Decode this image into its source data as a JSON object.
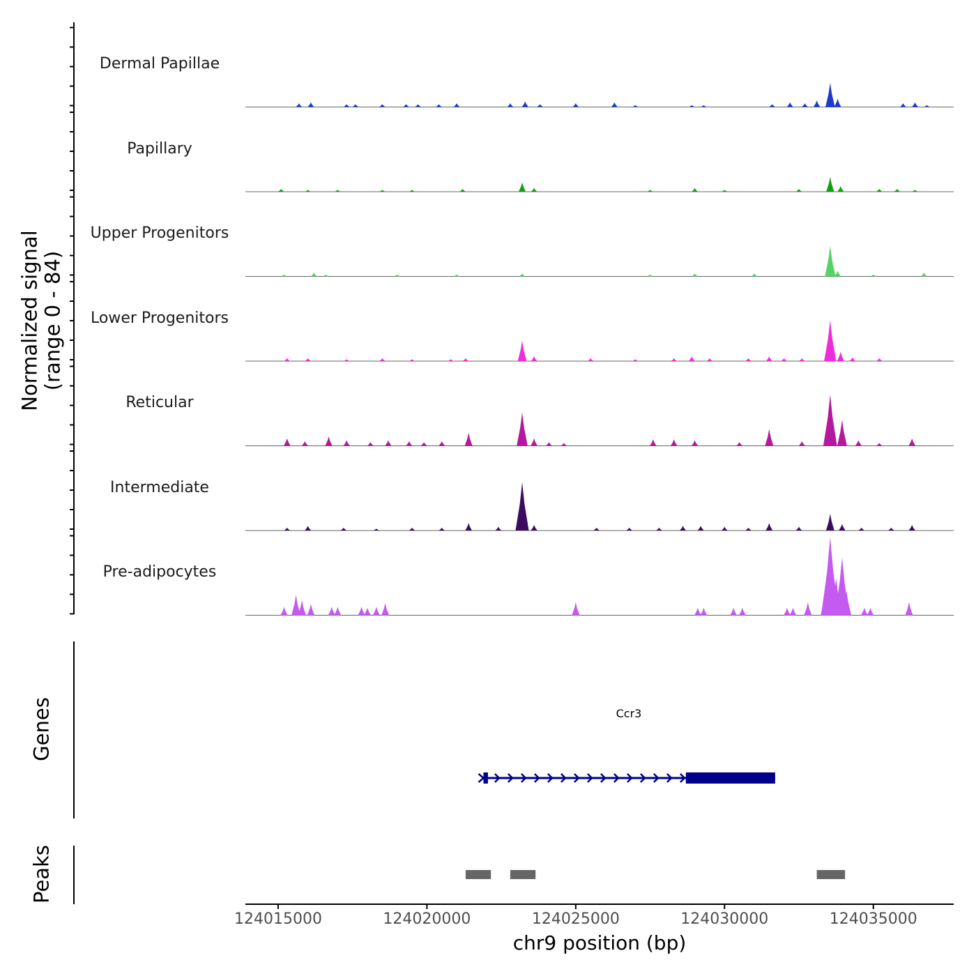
{
  "chart_data": {
    "type": "area",
    "title": "",
    "ylabel": "Normalized signal",
    "ylabel_range": "(range 0 - 84)",
    "ylim": [
      0,
      84
    ],
    "xlabel": "chr9 position (bp)",
    "xlim": [
      124013900,
      124037700
    ],
    "xticks": [
      124015000,
      124020000,
      124025000,
      124030000,
      124035000
    ],
    "xtick_labels": [
      "124015000",
      "124020000",
      "124025000",
      "124030000",
      "124035000"
    ],
    "series": [
      {
        "name": "Dermal Papillae",
        "color": "#1a3bcc",
        "peaks": [
          [
            124015700,
            4
          ],
          [
            124016100,
            5
          ],
          [
            124017300,
            3
          ],
          [
            124017600,
            3
          ],
          [
            124018500,
            3
          ],
          [
            124019300,
            3
          ],
          [
            124019700,
            3
          ],
          [
            124020400,
            3
          ],
          [
            124021000,
            4
          ],
          [
            124022800,
            4
          ],
          [
            124023300,
            6
          ],
          [
            124023800,
            3
          ],
          [
            124025000,
            4
          ],
          [
            124026300,
            5
          ],
          [
            124027000,
            2
          ],
          [
            124028900,
            2
          ],
          [
            124029300,
            2
          ],
          [
            124031600,
            3
          ],
          [
            124032200,
            5
          ],
          [
            124032700,
            4
          ],
          [
            124033100,
            7
          ],
          [
            124033550,
            26
          ],
          [
            124033800,
            9
          ],
          [
            124036000,
            4
          ],
          [
            124036400,
            5
          ],
          [
            124036800,
            2
          ]
        ]
      },
      {
        "name": "Papillary",
        "color": "#12a012",
        "peaks": [
          [
            124015100,
            3
          ],
          [
            124016000,
            2
          ],
          [
            124017000,
            2
          ],
          [
            124018500,
            2
          ],
          [
            124019500,
            2
          ],
          [
            124021200,
            3
          ],
          [
            124023200,
            10
          ],
          [
            124023600,
            4
          ],
          [
            124027500,
            2
          ],
          [
            124029000,
            4
          ],
          [
            124030000,
            2
          ],
          [
            124032500,
            3
          ],
          [
            124033550,
            16
          ],
          [
            124033900,
            6
          ],
          [
            124035200,
            3
          ],
          [
            124035800,
            3
          ],
          [
            124036400,
            2
          ]
        ]
      },
      {
        "name": "Upper Progenitors",
        "color": "#55d465",
        "peaks": [
          [
            124015200,
            2
          ],
          [
            124016200,
            4
          ],
          [
            124016600,
            2
          ],
          [
            124019000,
            2
          ],
          [
            124021000,
            2
          ],
          [
            124023200,
            3
          ],
          [
            124027500,
            2
          ],
          [
            124029000,
            3
          ],
          [
            124031000,
            3
          ],
          [
            124033550,
            33
          ],
          [
            124033800,
            6
          ],
          [
            124035000,
            2
          ],
          [
            124036700,
            4
          ]
        ]
      },
      {
        "name": "Lower Progenitors",
        "color": "#ee2cdc",
        "peaks": [
          [
            124015300,
            3
          ],
          [
            124016000,
            3
          ],
          [
            124017300,
            2
          ],
          [
            124018500,
            3
          ],
          [
            124019500,
            2
          ],
          [
            124020800,
            2
          ],
          [
            124021300,
            3
          ],
          [
            124023200,
            22
          ],
          [
            124023600,
            5
          ],
          [
            124025500,
            3
          ],
          [
            124027000,
            2
          ],
          [
            124028300,
            3
          ],
          [
            124028900,
            5
          ],
          [
            124029500,
            3
          ],
          [
            124030800,
            3
          ],
          [
            124031500,
            5
          ],
          [
            124032000,
            3
          ],
          [
            124032600,
            3
          ],
          [
            124033550,
            44
          ],
          [
            124033900,
            10
          ],
          [
            124034300,
            4
          ],
          [
            124035200,
            3
          ]
        ]
      },
      {
        "name": "Reticular",
        "color": "#b5179e",
        "peaks": [
          [
            124015300,
            8
          ],
          [
            124015900,
            5
          ],
          [
            124016700,
            10
          ],
          [
            124017300,
            6
          ],
          [
            124018100,
            4
          ],
          [
            124018700,
            6
          ],
          [
            124019400,
            5
          ],
          [
            124019900,
            4
          ],
          [
            124020500,
            5
          ],
          [
            124021400,
            14
          ],
          [
            124023200,
            36
          ],
          [
            124023600,
            8
          ],
          [
            124024100,
            4
          ],
          [
            124024600,
            3
          ],
          [
            124027600,
            7
          ],
          [
            124028300,
            7
          ],
          [
            124029000,
            6
          ],
          [
            124030500,
            4
          ],
          [
            124031500,
            18
          ],
          [
            124032600,
            5
          ],
          [
            124033550,
            55
          ],
          [
            124033950,
            28
          ],
          [
            124034500,
            6
          ],
          [
            124035200,
            3
          ],
          [
            124036300,
            8
          ]
        ]
      },
      {
        "name": "Intermediate",
        "color": "#3b0c5e",
        "peaks": [
          [
            124015300,
            3
          ],
          [
            124016000,
            5
          ],
          [
            124017200,
            3
          ],
          [
            124018300,
            2
          ],
          [
            124019500,
            3
          ],
          [
            124020500,
            3
          ],
          [
            124021400,
            8
          ],
          [
            124022400,
            4
          ],
          [
            124023200,
            52
          ],
          [
            124023600,
            6
          ],
          [
            124025700,
            3
          ],
          [
            124026800,
            3
          ],
          [
            124027800,
            3
          ],
          [
            124028600,
            5
          ],
          [
            124029200,
            5
          ],
          [
            124030000,
            4
          ],
          [
            124030800,
            3
          ],
          [
            124031500,
            8
          ],
          [
            124032500,
            4
          ],
          [
            124033550,
            18
          ],
          [
            124033950,
            7
          ],
          [
            124034600,
            3
          ],
          [
            124035600,
            3
          ],
          [
            124036300,
            6
          ]
        ]
      },
      {
        "name": "Pre-adipocytes",
        "color": "#c45af0",
        "peaks": [
          [
            124015200,
            9
          ],
          [
            124015600,
            22
          ],
          [
            124015800,
            16
          ],
          [
            124016100,
            12
          ],
          [
            124016800,
            9
          ],
          [
            124017000,
            9
          ],
          [
            124017800,
            9
          ],
          [
            124018000,
            8
          ],
          [
            124018300,
            9
          ],
          [
            124018600,
            13
          ],
          [
            124025000,
            14
          ],
          [
            124029100,
            8
          ],
          [
            124029300,
            8
          ],
          [
            124030300,
            8
          ],
          [
            124030600,
            8
          ],
          [
            124032100,
            8
          ],
          [
            124032300,
            8
          ],
          [
            124032800,
            14
          ],
          [
            124033400,
            30
          ],
          [
            124033550,
            84
          ],
          [
            124033750,
            40
          ],
          [
            124033950,
            62
          ],
          [
            124034100,
            26
          ],
          [
            124034700,
            8
          ],
          [
            124034900,
            8
          ],
          [
            124036200,
            14
          ]
        ]
      }
    ],
    "genes": [
      {
        "name": "Ccr3",
        "start": 124021900,
        "end": 124031700,
        "strand": "+",
        "exons": [
          [
            124021900,
            124022050
          ],
          [
            124028700,
            124031700
          ]
        ]
      }
    ],
    "peaks_track_label": "Peaks",
    "genes_track_label": "Genes",
    "peak_regions": [
      [
        124021300,
        124022150
      ],
      [
        124022800,
        124023650
      ],
      [
        124033100,
        124034050
      ]
    ]
  }
}
